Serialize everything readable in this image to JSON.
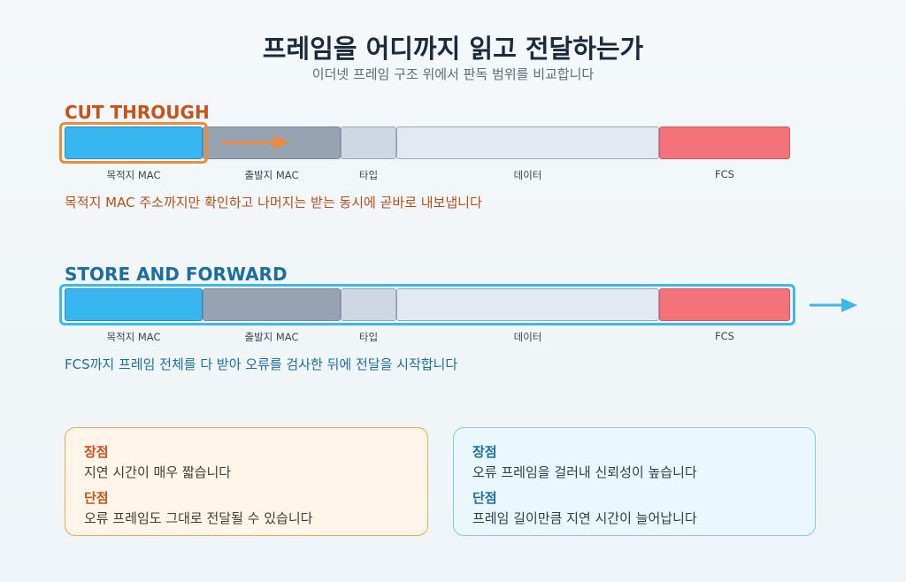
{
  "header": {
    "title": "프레임을 어디까지 읽고 전달하는가",
    "subtitle": "이더넷 프레임 구조 위에서 판독 범위를 비교합니다"
  },
  "frame_fields": [
    "목적지 MAC",
    "출발지 MAC",
    "타입",
    "데이터",
    "FCS"
  ],
  "colors": {
    "cut_accent": "#ef8a3a",
    "store_accent": "#3cb8ec",
    "dst_mac": "#37b6f0",
    "src_mac": "#96a3b3",
    "type": "#cfd8e2",
    "data": "#e3e9f0",
    "fcs": "#f4737a"
  },
  "cut_through": {
    "label": "CUT THROUGH",
    "description": "목적지 MAC 주소까지만 확인하고 나머지는 받는 동시에 곧바로 내보냅니다",
    "pros_title": "장점",
    "pros_text": "지연 시간이 매우 짧습니다",
    "cons_title": "단점",
    "cons_text": "오류 프레임도 그대로 전달될 수 있습니다"
  },
  "store_and_forward": {
    "label": "STORE AND FORWARD",
    "description": "FCS까지 프레임 전체를 다 받아 오류를 검사한 뒤에 전달을 시작합니다",
    "pros_title": "장점",
    "pros_text": "오류 프레임을 걸러내 신뢰성이 높습니다",
    "cons_title": "단점",
    "cons_text": "프레임 길이만큼 지연 시간이 늘어납니다"
  },
  "icons": {
    "cut_arrow": "arrow-right-icon",
    "store_arrow": "arrow-right-icon"
  }
}
